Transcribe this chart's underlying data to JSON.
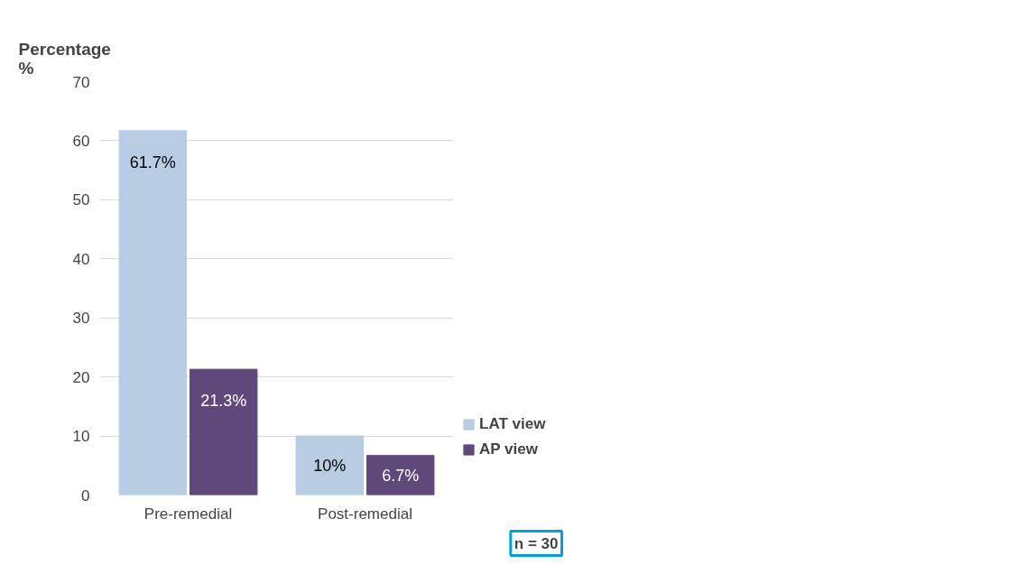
{
  "chart_data": {
    "type": "bar",
    "ylabel": "Percentage\n%",
    "categories": [
      "Pre-remedial",
      "Post-remedial"
    ],
    "series": [
      {
        "name": "LAT view",
        "color": "#b8cce4",
        "values": [
          61.7,
          10
        ],
        "value_labels": [
          "61.7%",
          "10%"
        ]
      },
      {
        "name": "AP view",
        "color": "#5f497a",
        "values": [
          21.3,
          6.7
        ],
        "value_labels": [
          "21.3%",
          "6.7%"
        ]
      }
    ],
    "ylim": [
      0,
      70
    ],
    "yticks": [
      0,
      10,
      20,
      30,
      40,
      50,
      60,
      70
    ],
    "grid": "y",
    "legend": "bottom right",
    "annotations": [
      "n = 30"
    ]
  }
}
